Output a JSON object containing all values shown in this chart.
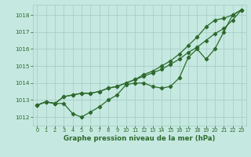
{
  "x": [
    0,
    1,
    2,
    3,
    4,
    5,
    6,
    7,
    8,
    9,
    10,
    11,
    12,
    13,
    14,
    15,
    16,
    17,
    18,
    19,
    20,
    21,
    22,
    23
  ],
  "line1": [
    1012.7,
    1012.9,
    1012.8,
    1012.8,
    1012.2,
    1012.0,
    1012.3,
    1012.6,
    1013.0,
    1013.3,
    1013.9,
    1014.0,
    1014.0,
    1013.8,
    1013.7,
    1013.8,
    1014.3,
    1015.5,
    1016.0,
    1015.4,
    1016.0,
    1017.0,
    1018.0,
    1018.3
  ],
  "line2": [
    1012.7,
    1012.9,
    1012.8,
    1013.2,
    1013.3,
    1013.4,
    1013.4,
    1013.5,
    1013.7,
    1013.8,
    1014.0,
    1014.2,
    1014.4,
    1014.6,
    1014.8,
    1015.1,
    1015.4,
    1015.8,
    1016.1,
    1016.5,
    1016.9,
    1017.2,
    1017.7,
    1018.3
  ],
  "line3": [
    1012.7,
    1012.9,
    1012.8,
    1013.2,
    1013.3,
    1013.4,
    1013.4,
    1013.5,
    1013.7,
    1013.8,
    1014.0,
    1014.2,
    1014.5,
    1014.7,
    1015.0,
    1015.3,
    1015.7,
    1016.2,
    1016.7,
    1017.3,
    1017.7,
    1017.8,
    1018.0,
    1018.3
  ],
  "line_color": "#2d6a2d",
  "bg_color": "#c5e8e0",
  "grid_color": "#a8cfc8",
  "xlabel": "Graphe pression niveau de la mer (hPa)",
  "ylim_min": 1011.5,
  "ylim_max": 1018.6,
  "yticks": [
    1012,
    1013,
    1014,
    1015,
    1016,
    1017,
    1018
  ],
  "xticks": [
    0,
    1,
    2,
    3,
    4,
    5,
    6,
    7,
    8,
    9,
    10,
    11,
    12,
    13,
    14,
    15,
    16,
    17,
    18,
    19,
    20,
    21,
    22,
    23
  ]
}
